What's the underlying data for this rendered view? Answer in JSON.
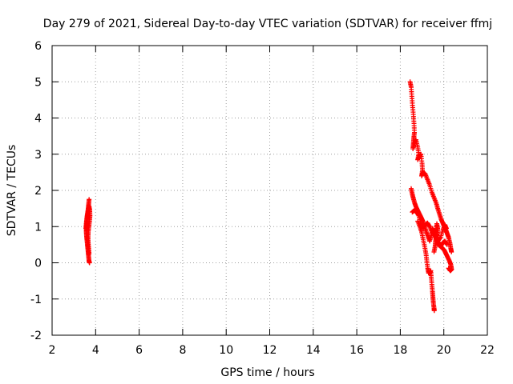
{
  "chart_data": {
    "type": "scatter",
    "title": "Day 279 of 2021, Sidereal Day-to-day VTEC variation (SDTVAR) for receiver ffmj",
    "xlabel": "GPS time / hours",
    "ylabel": "SDTVAR / TECUs",
    "xlim": [
      2,
      22
    ],
    "ylim": [
      -2,
      6
    ],
    "xticks": [
      "2",
      "4",
      "6",
      "8",
      "10",
      "12",
      "14",
      "16",
      "18",
      "20",
      "22"
    ],
    "yticks": [
      "6",
      "5",
      "4",
      "3",
      "2",
      "1",
      "0",
      "-1",
      "-2"
    ],
    "grid": true,
    "marker": "+",
    "series": [
      {
        "name": "SDTVAR",
        "color": "#ff0000",
        "segments": [
          [
            [
              3.7,
              1.75
            ],
            [
              3.68,
              1.62
            ],
            [
              3.66,
              1.5
            ],
            [
              3.64,
              1.38
            ],
            [
              3.62,
              1.25
            ],
            [
              3.6,
              1.12
            ],
            [
              3.58,
              1.0
            ],
            [
              3.57,
              0.88
            ],
            [
              3.58,
              0.76
            ],
            [
              3.6,
              0.64
            ],
            [
              3.62,
              0.52
            ],
            [
              3.64,
              0.4
            ],
            [
              3.66,
              0.28
            ],
            [
              3.68,
              0.16
            ],
            [
              3.7,
              0.04
            ],
            [
              3.72,
              0.0
            ]
          ],
          [
            [
              3.55,
              0.95
            ],
            [
              3.57,
              1.08
            ],
            [
              3.59,
              1.21
            ],
            [
              3.62,
              1.34
            ],
            [
              3.66,
              1.47
            ],
            [
              3.7,
              1.56
            ],
            [
              3.73,
              1.45
            ],
            [
              3.74,
              1.3
            ],
            [
              3.72,
              1.15
            ],
            [
              3.69,
              1.0
            ],
            [
              3.66,
              0.85
            ],
            [
              3.65,
              0.7
            ],
            [
              3.66,
              0.55
            ],
            [
              3.68,
              0.4
            ],
            [
              3.7,
              0.25
            ]
          ],
          [
            [
              18.45,
              5.0
            ],
            [
              18.5,
              4.85
            ],
            [
              18.53,
              4.6
            ],
            [
              18.56,
              4.35
            ],
            [
              18.6,
              4.1
            ],
            [
              18.63,
              3.85
            ],
            [
              18.65,
              3.6
            ],
            [
              18.62,
              3.45
            ],
            [
              18.6,
              3.3
            ],
            [
              18.58,
              3.15
            ],
            [
              18.65,
              3.3
            ],
            [
              18.72,
              3.4
            ],
            [
              18.8,
              3.2
            ],
            [
              18.85,
              3.0
            ],
            [
              18.8,
              2.85
            ],
            [
              18.88,
              2.95
            ],
            [
              18.95,
              3.0
            ],
            [
              19.0,
              2.75
            ],
            [
              19.02,
              2.55
            ],
            [
              18.98,
              2.4
            ],
            [
              19.05,
              2.5
            ],
            [
              19.15,
              2.45
            ],
            [
              19.25,
              2.3
            ],
            [
              19.35,
              2.15
            ],
            [
              19.45,
              1.95
            ],
            [
              19.55,
              1.8
            ],
            [
              19.65,
              1.65
            ],
            [
              19.72,
              1.5
            ],
            [
              19.8,
              1.35
            ],
            [
              19.88,
              1.2
            ],
            [
              19.95,
              1.1
            ],
            [
              20.02,
              1.0
            ],
            [
              20.1,
              0.9
            ],
            [
              20.16,
              0.8
            ],
            [
              20.22,
              0.7
            ],
            [
              20.28,
              0.55
            ],
            [
              20.32,
              0.4
            ],
            [
              20.35,
              0.3
            ]
          ],
          [
            [
              18.5,
              2.05
            ],
            [
              18.55,
              1.9
            ],
            [
              18.6,
              1.78
            ],
            [
              18.66,
              1.65
            ],
            [
              18.72,
              1.55
            ],
            [
              18.8,
              1.45
            ],
            [
              18.88,
              1.35
            ],
            [
              18.96,
              1.25
            ],
            [
              19.04,
              1.15
            ],
            [
              19.12,
              1.0
            ],
            [
              19.2,
              0.85
            ],
            [
              19.28,
              0.72
            ],
            [
              19.35,
              0.6
            ],
            [
              19.42,
              0.75
            ],
            [
              19.48,
              0.95
            ],
            [
              19.55,
              0.85
            ],
            [
              19.62,
              0.7
            ],
            [
              19.7,
              0.6
            ],
            [
              19.78,
              0.55
            ],
            [
              19.86,
              0.45
            ],
            [
              19.94,
              0.4
            ],
            [
              20.02,
              0.35
            ],
            [
              20.1,
              0.25
            ],
            [
              20.18,
              0.15
            ],
            [
              20.26,
              0.05
            ],
            [
              20.32,
              -0.05
            ],
            [
              20.36,
              -0.18
            ],
            [
              20.3,
              -0.22
            ],
            [
              20.22,
              -0.15
            ]
          ],
          [
            [
              18.55,
              1.4
            ],
            [
              18.65,
              1.45
            ],
            [
              18.75,
              1.4
            ],
            [
              18.85,
              1.3
            ],
            [
              18.95,
              1.1
            ],
            [
              19.05,
              0.95
            ],
            [
              19.15,
              1.05
            ],
            [
              19.25,
              1.1
            ],
            [
              19.35,
              1.0
            ],
            [
              19.45,
              0.85
            ],
            [
              19.55,
              0.8
            ],
            [
              19.65,
              0.7
            ],
            [
              19.7,
              0.6
            ],
            [
              19.75,
              0.5
            ],
            [
              19.85,
              0.45
            ],
            [
              19.95,
              0.55
            ],
            [
              20.05,
              0.6
            ],
            [
              20.15,
              0.5
            ]
          ],
          [
            [
              18.8,
              1.15
            ],
            [
              18.9,
              1.0
            ],
            [
              18.98,
              0.85
            ],
            [
              19.05,
              0.65
            ],
            [
              19.12,
              0.45
            ],
            [
              19.18,
              0.25
            ],
            [
              19.22,
              0.05
            ],
            [
              19.26,
              -0.15
            ],
            [
              19.3,
              -0.28
            ],
            [
              19.35,
              -0.28
            ],
            [
              19.4,
              -0.22
            ],
            [
              19.42,
              -0.4
            ],
            [
              19.45,
              -0.6
            ],
            [
              19.48,
              -0.8
            ],
            [
              19.5,
              -0.95
            ],
            [
              19.52,
              -1.1
            ],
            [
              19.55,
              -1.25
            ],
            [
              19.56,
              -1.32
            ]
          ],
          [
            [
              19.55,
              0.3
            ],
            [
              19.6,
              0.45
            ],
            [
              19.62,
              0.6
            ],
            [
              19.65,
              0.72
            ],
            [
              19.7,
              0.8
            ],
            [
              19.72,
              0.95
            ],
            [
              19.68,
              1.08
            ],
            [
              19.64,
              0.9
            ],
            [
              19.66,
              0.7
            ],
            [
              19.75,
              0.62
            ],
            [
              19.85,
              0.7
            ],
            [
              19.95,
              0.9
            ],
            [
              20.05,
              1.05
            ],
            [
              20.12,
              0.95
            ]
          ]
        ]
      }
    ]
  }
}
